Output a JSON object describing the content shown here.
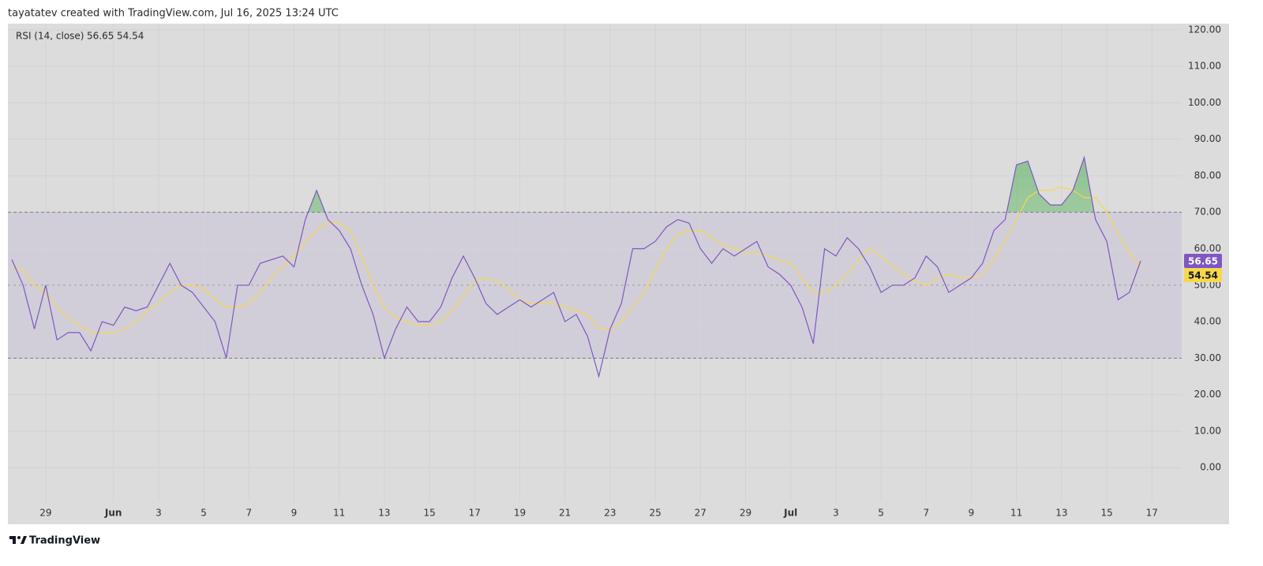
{
  "header": {
    "attribution": "tayatatev created with TradingView.com, Jul 16, 2025 13:24 UTC"
  },
  "footer": {
    "brand": "TradingView"
  },
  "chart_data": {
    "type": "line",
    "categories": [
      "",
      "",
      "",
      "29",
      "",
      "",
      "",
      "",
      "",
      "Jun",
      "",
      "",
      "",
      "3",
      "",
      "",
      "",
      "5",
      "",
      "",
      "",
      "7",
      "",
      "",
      "",
      "9",
      "",
      "",
      "",
      "11",
      "",
      "",
      "",
      "13",
      "",
      "",
      "",
      "15",
      "",
      "",
      "",
      "17",
      "",
      "",
      "",
      "19",
      "",
      "",
      "",
      "21",
      "",
      "",
      "",
      "23",
      "",
      "",
      "",
      "25",
      "",
      "",
      "",
      "27",
      "",
      "",
      "",
      "29",
      "",
      "",
      "",
      "Jul",
      "",
      "",
      "",
      "3",
      "",
      "",
      "",
      "5",
      "",
      "",
      "",
      "7",
      "",
      "",
      "",
      "9",
      "",
      "",
      "",
      "11",
      "",
      "",
      "",
      "13",
      "",
      "",
      "",
      "15",
      "",
      "",
      "",
      "17"
    ],
    "series": [
      {
        "name": "RSI (14, close)",
        "color": "#7e57c2",
        "values": [
          57,
          50,
          38,
          50,
          35,
          37,
          37,
          32,
          40,
          39,
          44,
          43,
          44,
          50,
          56,
          50,
          48,
          44,
          40,
          30,
          50,
          50,
          56,
          57,
          58,
          55,
          68,
          76,
          68,
          65,
          60,
          50,
          42,
          30,
          38,
          44,
          40,
          40,
          44,
          52,
          58,
          52,
          45,
          42,
          44,
          46,
          44,
          46,
          48,
          40,
          42,
          36,
          25,
          38,
          45,
          60,
          60,
          62,
          66,
          68,
          67,
          60,
          56,
          60,
          58,
          60,
          62,
          55,
          53,
          50,
          44,
          34,
          60,
          58,
          63,
          60,
          55,
          48,
          50,
          50,
          52,
          58,
          55,
          48,
          50,
          52,
          56,
          65,
          68,
          83,
          84,
          75,
          72,
          72,
          76,
          85,
          68,
          62,
          46,
          48,
          56.65,
          null
        ]
      },
      {
        "color": "#f7d84c",
        "values": [
          55,
          54,
          50,
          48,
          44,
          41,
          39,
          37,
          37,
          37,
          38,
          40,
          43,
          45,
          48,
          50,
          50,
          49,
          46,
          44,
          44,
          45,
          48,
          52,
          55,
          58,
          62,
          65,
          67,
          67,
          65,
          58,
          50,
          44,
          41,
          40,
          39,
          39,
          40,
          43,
          47,
          51,
          52,
          51,
          49,
          46,
          45,
          45,
          45,
          44,
          43,
          42,
          38,
          38,
          40,
          44,
          48,
          54,
          60,
          64,
          65,
          65,
          63,
          61,
          60,
          59,
          59,
          58,
          57,
          56,
          52,
          48,
          48,
          50,
          53,
          57,
          60,
          58,
          55,
          53,
          51,
          50,
          52,
          53,
          52,
          52,
          53,
          57,
          62,
          68,
          74,
          76,
          76,
          77,
          76,
          74,
          74,
          70,
          64,
          59,
          54.54,
          null
        ]
      }
    ],
    "ylim": [
      -15.1,
      121.7
    ],
    "yticks": [
      {
        "value": 0,
        "label": "0.00"
      },
      {
        "value": 10,
        "label": "10.00"
      },
      {
        "value": 20,
        "label": "20.00"
      },
      {
        "value": 30,
        "label": "30.00"
      },
      {
        "value": 40,
        "label": "40.00"
      },
      {
        "value": 50,
        "label": "50.00"
      },
      {
        "value": 60,
        "label": "60.00"
      },
      {
        "value": 70,
        "label": "70.00"
      },
      {
        "value": 80,
        "label": "80.00"
      },
      {
        "value": 90,
        "label": "90.00"
      },
      {
        "value": 100,
        "label": "100.00"
      },
      {
        "value": 110,
        "label": "110.00"
      },
      {
        "value": 120,
        "label": "120.00"
      }
    ],
    "bands": {
      "upper": 70,
      "middle": 50,
      "lower": 30
    },
    "grid": true
  }
}
